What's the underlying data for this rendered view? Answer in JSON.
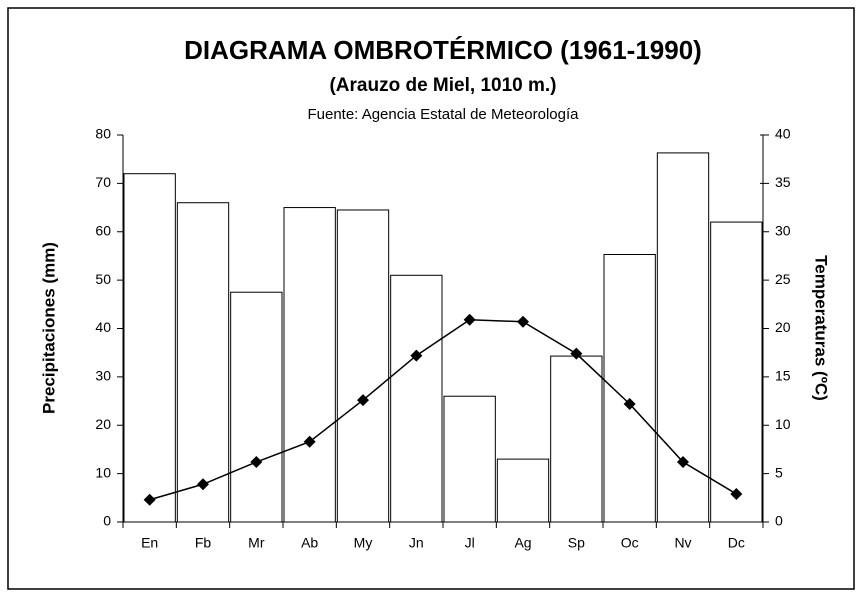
{
  "chart_data": {
    "type": "combo",
    "title": "DIAGRAMA OMBROTÉRMICO  (1961-1990)",
    "subtitle": "(Arauzo de Miel, 1010 m.)",
    "source": "Fuente: Agencia Estatal de Meteorología",
    "ylabel": "Precipitaciones (mm)",
    "y2label": "Temperaturas (ºC)",
    "categories": [
      "En",
      "Fb",
      "Mr",
      "Ab",
      "My",
      "Jn",
      "Jl",
      "Ag",
      "Sp",
      "Oc",
      "Nv",
      "Dc"
    ],
    "series": [
      {
        "type": "bar",
        "color": "#ffffff",
        "values": [
          72,
          66,
          47.5,
          65,
          64.5,
          51,
          26,
          13,
          34.3,
          55.3,
          76.3,
          62
        ]
      },
      {
        "type": "line",
        "axis": "y2",
        "color": "#000000",
        "values": [
          2.3,
          3.9,
          6.2,
          8.3,
          12.6,
          17.2,
          20.9,
          20.7,
          17.4,
          12.2,
          6.2,
          2.9
        ]
      }
    ],
    "ylim": [
      0,
      80
    ],
    "yticks": [
      0,
      10,
      20,
      30,
      40,
      50,
      60,
      70,
      80
    ],
    "y2lim": [
      0,
      40
    ],
    "y2ticks": [
      0,
      5,
      10,
      15,
      20,
      25,
      30,
      35,
      40
    ]
  }
}
